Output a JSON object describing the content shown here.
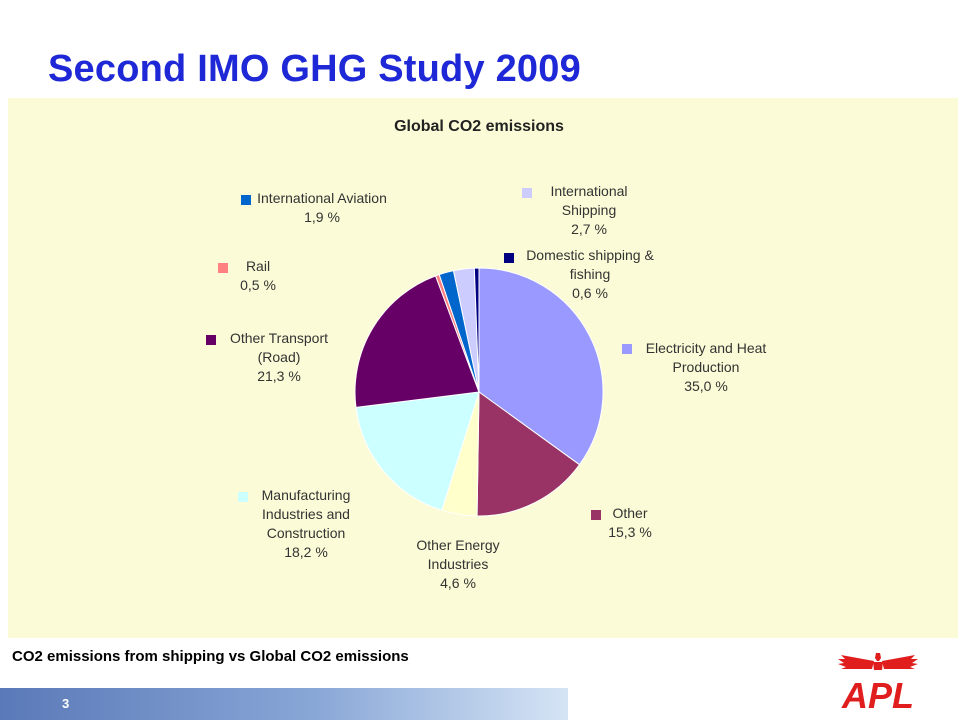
{
  "slide": {
    "title": "Second IMO GHG Study 2009",
    "caption": "CO2 emissions from shipping vs Global CO2 emissions",
    "page_number": "3"
  },
  "logo": {
    "text": "APL",
    "color": "#e01e1e",
    "icon": "eagle-wings-icon"
  },
  "colors": {
    "title": "#1f28d6",
    "chart_background": "#fbfbd7"
  },
  "chart_data": {
    "type": "pie",
    "title": "Global CO2 emissions",
    "unit": "%",
    "slices": [
      {
        "label": [
          "Electricity and Heat",
          "Production"
        ],
        "value_label": "35,0 %",
        "value": 35.0,
        "color": "#9999ff"
      },
      {
        "label": [
          "Other"
        ],
        "value_label": "15,3 %",
        "value": 15.3,
        "color": "#993366"
      },
      {
        "label": [
          "Other Energy",
          "Industries"
        ],
        "value_label": "4,6 %",
        "value": 4.6,
        "color": "#ffffcc"
      },
      {
        "label": [
          "Manufacturing",
          "Industries and",
          "Construction"
        ],
        "value_label": "18,2 %",
        "value": 18.2,
        "color": "#ccffff"
      },
      {
        "label": [
          "Other Transport",
          "(Road)"
        ],
        "value_label": "21,3 %",
        "value": 21.3,
        "color": "#660066"
      },
      {
        "label": [
          "Rail"
        ],
        "value_label": "0,5 %",
        "value": 0.5,
        "color": "#ff8080"
      },
      {
        "label": [
          "International Aviation"
        ],
        "value_label": "1,9 %",
        "value": 1.9,
        "color": "#0066cc"
      },
      {
        "label": [
          "International",
          "Shipping"
        ],
        "value_label": "2,7 %",
        "value": 2.7,
        "color": "#ccccff"
      },
      {
        "label": [
          "Domestic shipping &",
          "fishing"
        ],
        "value_label": "0,6 %",
        "value": 0.6,
        "color": "#000080"
      }
    ]
  }
}
